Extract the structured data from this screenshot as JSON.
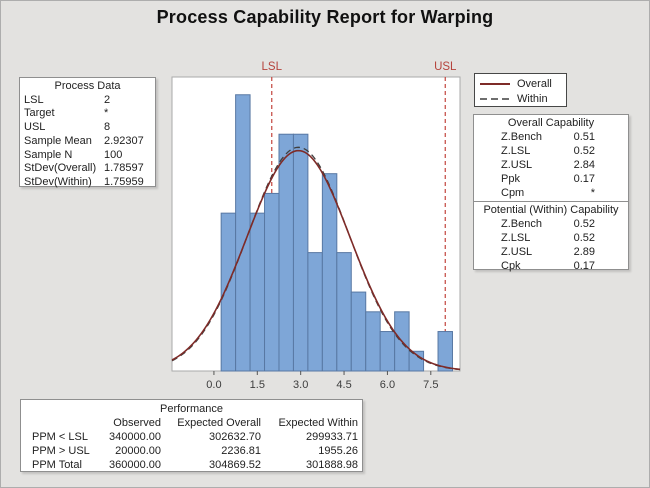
{
  "title": "Process Capability Report for Warping",
  "process_data": {
    "title": "Process Data",
    "rows": [
      {
        "label": "LSL",
        "value": "2"
      },
      {
        "label": "Target",
        "value": "*"
      },
      {
        "label": "USL",
        "value": "8"
      },
      {
        "label": "Sample Mean",
        "value": "2.92307"
      },
      {
        "label": "Sample N",
        "value": "100"
      },
      {
        "label": "StDev(Overall)",
        "value": "1.78597"
      },
      {
        "label": "StDev(Within)",
        "value": "1.75959"
      }
    ]
  },
  "legend": {
    "items": [
      {
        "label": "Overall",
        "style": "solid"
      },
      {
        "label": "Within",
        "style": "dashed"
      }
    ]
  },
  "overall_capability": {
    "title": "Overall Capability",
    "rows": [
      {
        "label": "Z.Bench",
        "value": "0.51"
      },
      {
        "label": "Z.LSL",
        "value": "0.52"
      },
      {
        "label": "Z.USL",
        "value": "2.84"
      },
      {
        "label": "Ppk",
        "value": "0.17"
      },
      {
        "label": "Cpm",
        "value": "*"
      }
    ]
  },
  "within_capability": {
    "title": "Potential (Within) Capability",
    "rows": [
      {
        "label": "Z.Bench",
        "value": "0.52"
      },
      {
        "label": "Z.LSL",
        "value": "0.52"
      },
      {
        "label": "Z.USL",
        "value": "2.89"
      },
      {
        "label": "Cpk",
        "value": "0.17"
      }
    ]
  },
  "performance": {
    "title": "Performance",
    "columns": [
      "Observed",
      "Expected Overall",
      "Expected Within"
    ],
    "rows": [
      {
        "label": "PPM < LSL",
        "values": [
          "340000.00",
          "302632.70",
          "299933.71"
        ]
      },
      {
        "label": "PPM > USL",
        "values": [
          "20000.00",
          "2236.81",
          "1955.26"
        ]
      },
      {
        "label": "PPM Total",
        "values": [
          "360000.00",
          "304869.52",
          "301888.98"
        ]
      }
    ]
  },
  "chart_data": {
    "type": "histogram",
    "title": "Process Capability Report for Warping",
    "xlabel": "",
    "ylabel": "",
    "bin_start": 0.25,
    "bin_width": 0.5,
    "bin_centers": [
      0.5,
      1.0,
      1.5,
      2.0,
      2.5,
      3.0,
      3.5,
      4.0,
      4.5,
      5.0,
      5.5,
      6.0,
      6.5,
      7.0,
      7.5,
      8.0
    ],
    "counts": [
      8,
      14,
      8,
      9,
      12,
      12,
      6,
      10,
      6,
      4,
      3,
      2,
      3,
      1,
      0,
      2
    ],
    "sample_n": 100,
    "x_ticks": [
      "0.0",
      "1.5",
      "3.0",
      "4.5",
      "6.0",
      "7.5"
    ],
    "x_tick_values": [
      0,
      1.5,
      3,
      4.5,
      6,
      7.5
    ],
    "x_range": [
      -1.45,
      8.51
    ],
    "y_max": 14.9,
    "spec_limits": [
      {
        "label": "LSL",
        "value": 2
      },
      {
        "label": "USL",
        "value": 8
      }
    ],
    "curves": [
      {
        "name": "Within",
        "mean": 2.92307,
        "stdev": 1.75959,
        "style": "dashed",
        "color": "#3f3f3f"
      },
      {
        "name": "Overall",
        "mean": 2.92307,
        "stdev": 1.78597,
        "style": "solid",
        "color": "#7e2b28"
      }
    ],
    "colors": {
      "bar_fill": "#7ea6d7",
      "bar_stroke": "#5878a3",
      "spec_line": "#c2443d",
      "spec_label": "#b5433c",
      "plot_border": "#aaaaaa",
      "tick_label": "#3d3d3d",
      "background": "#e3e2e0"
    }
  }
}
